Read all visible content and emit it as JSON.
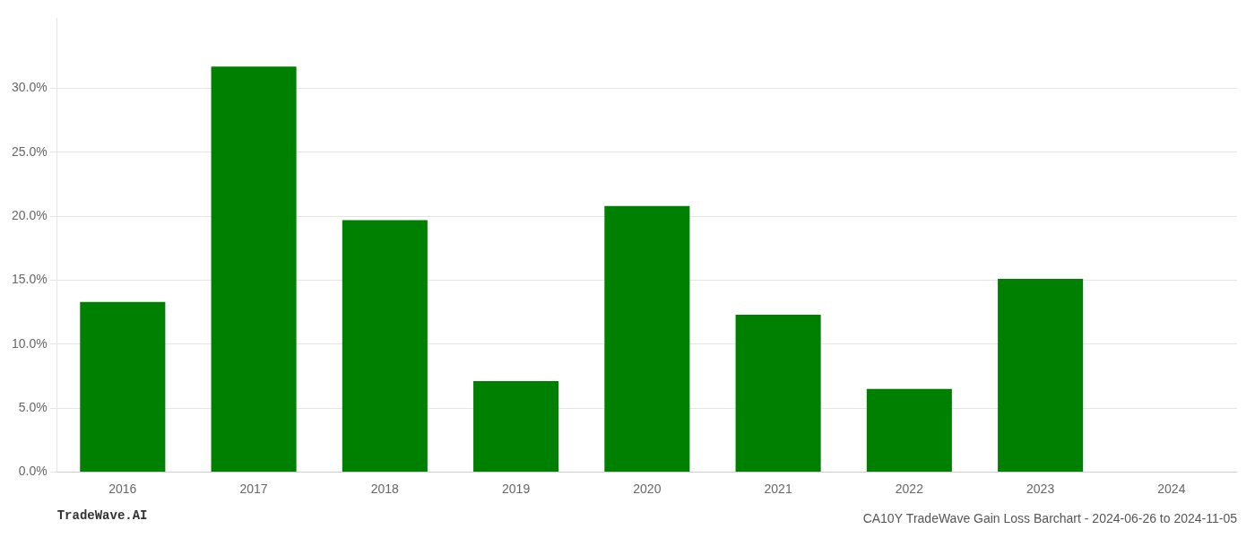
{
  "chart_data": {
    "type": "bar",
    "title": "CA10Y TradeWave Gain Loss Barchart - 2024-06-26 to 2024-11-05",
    "annotations": [
      "TradeWave.AI"
    ],
    "categories": [
      "2016",
      "2017",
      "2018",
      "2019",
      "2020",
      "2021",
      "2022",
      "2023",
      "2024"
    ],
    "values": [
      0.133,
      0.317,
      0.197,
      0.071,
      0.208,
      0.123,
      0.065,
      0.151,
      null
    ],
    "color": "#008000",
    "ylim": [
      0,
      0.355
    ],
    "yticks": [
      {
        "value": 0.0,
        "label": "0.0%"
      },
      {
        "value": 0.05,
        "label": "5.0%"
      },
      {
        "value": 0.1,
        "label": "10.0%"
      },
      {
        "value": 0.15,
        "label": "15.0%"
      },
      {
        "value": 0.2,
        "label": "20.0%"
      },
      {
        "value": 0.25,
        "label": "25.0%"
      },
      {
        "value": 0.3,
        "label": "30.0%"
      }
    ],
    "grid": true
  }
}
